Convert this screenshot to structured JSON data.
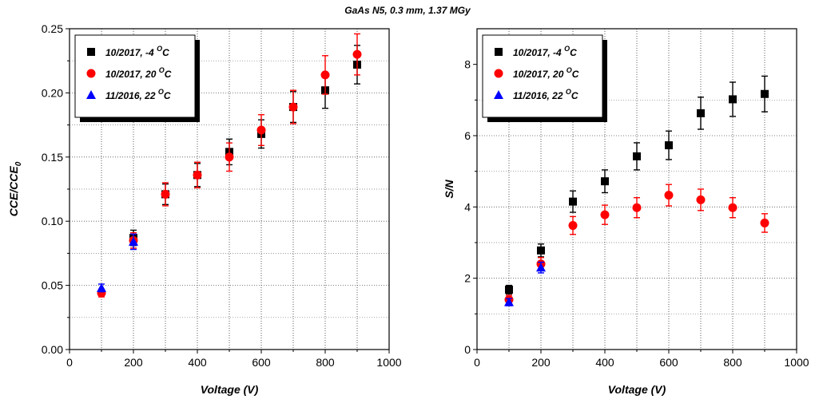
{
  "figure_title": "GaAs N5, 0.3 mm, 1.37 MGy",
  "chart_data": [
    {
      "type": "scatter",
      "xlabel": "Voltage (V)",
      "ylabel": "CCE/CCE",
      "ylabel_sub": "0",
      "xlim": [
        0,
        1000
      ],
      "ylim": [
        0,
        0.25
      ],
      "xticks": [
        0,
        200,
        400,
        600,
        800,
        1000
      ],
      "yticks": [
        0.0,
        0.05,
        0.1,
        0.15,
        0.2,
        0.25
      ],
      "ytick_labels": [
        "0.00",
        "0.05",
        "0.10",
        "0.15",
        "0.20",
        "0.25"
      ],
      "grid": "dotted",
      "legend_position": "top-left",
      "series": [
        {
          "name": "10/2017, -4",
          "name_sup": "O",
          "name_unit": "C",
          "color": "#000000",
          "marker": "square",
          "x": [
            200,
            300,
            400,
            500,
            600,
            700,
            800,
            900
          ],
          "y": [
            0.087,
            0.121,
            0.136,
            0.154,
            0.168,
            0.189,
            0.202,
            0.222
          ],
          "err": [
            0.006,
            0.008,
            0.009,
            0.01,
            0.011,
            0.012,
            0.014,
            0.015
          ]
        },
        {
          "name": "10/2017, 20",
          "name_sup": "O",
          "name_unit": "C",
          "color": "#ff0000",
          "marker": "circle",
          "x": [
            100,
            200,
            300,
            400,
            500,
            600,
            700,
            800,
            900
          ],
          "y": [
            0.044,
            0.085,
            0.121,
            0.136,
            0.15,
            0.171,
            0.189,
            0.214,
            0.23
          ],
          "err": [
            0.003,
            0.006,
            0.009,
            0.01,
            0.011,
            0.012,
            0.013,
            0.015,
            0.016
          ]
        },
        {
          "name": "11/2016, 22",
          "name_sup": "O",
          "name_unit": "C",
          "color": "#0000ff",
          "marker": "triangle",
          "x": [
            100,
            200
          ],
          "y": [
            0.048,
            0.084
          ],
          "err": [
            0.003,
            0.006
          ]
        }
      ]
    },
    {
      "type": "scatter",
      "xlabel": "Voltage (V)",
      "ylabel": "S/N",
      "ylabel_sub": "",
      "xlim": [
        0,
        1000
      ],
      "ylim": [
        0,
        9
      ],
      "xticks": [
        0,
        200,
        400,
        600,
        800,
        1000
      ],
      "yticks": [
        0,
        2,
        4,
        6,
        8
      ],
      "ytick_labels": [
        "0",
        "2",
        "4",
        "6",
        "8"
      ],
      "grid": "dotted",
      "legend_position": "top-left",
      "series": [
        {
          "name": "10/2017, -4",
          "name_sup": "O",
          "name_unit": "C",
          "color": "#000000",
          "marker": "square",
          "x": [
            100,
            200,
            300,
            400,
            500,
            600,
            700,
            800,
            900
          ],
          "y": [
            1.68,
            2.78,
            4.15,
            4.72,
            5.42,
            5.73,
            6.63,
            7.02,
            7.17
          ],
          "err": [
            0.12,
            0.18,
            0.3,
            0.32,
            0.38,
            0.4,
            0.45,
            0.48,
            0.5
          ]
        },
        {
          "name": "10/2017, 20",
          "name_sup": "O",
          "name_unit": "C",
          "color": "#ff0000",
          "marker": "circle",
          "x": [
            100,
            200,
            300,
            400,
            500,
            600,
            700,
            800,
            900
          ],
          "y": [
            1.4,
            2.4,
            3.48,
            3.78,
            3.98,
            4.33,
            4.2,
            3.98,
            3.55
          ],
          "err": [
            0.12,
            0.18,
            0.25,
            0.27,
            0.28,
            0.3,
            0.3,
            0.28,
            0.26
          ]
        },
        {
          "name": "11/2016, 22",
          "name_sup": "O",
          "name_unit": "C",
          "color": "#0000ff",
          "marker": "triangle",
          "x": [
            100,
            200
          ],
          "y": [
            1.33,
            2.3
          ],
          "err": [
            0.1,
            0.15
          ]
        }
      ]
    }
  ]
}
